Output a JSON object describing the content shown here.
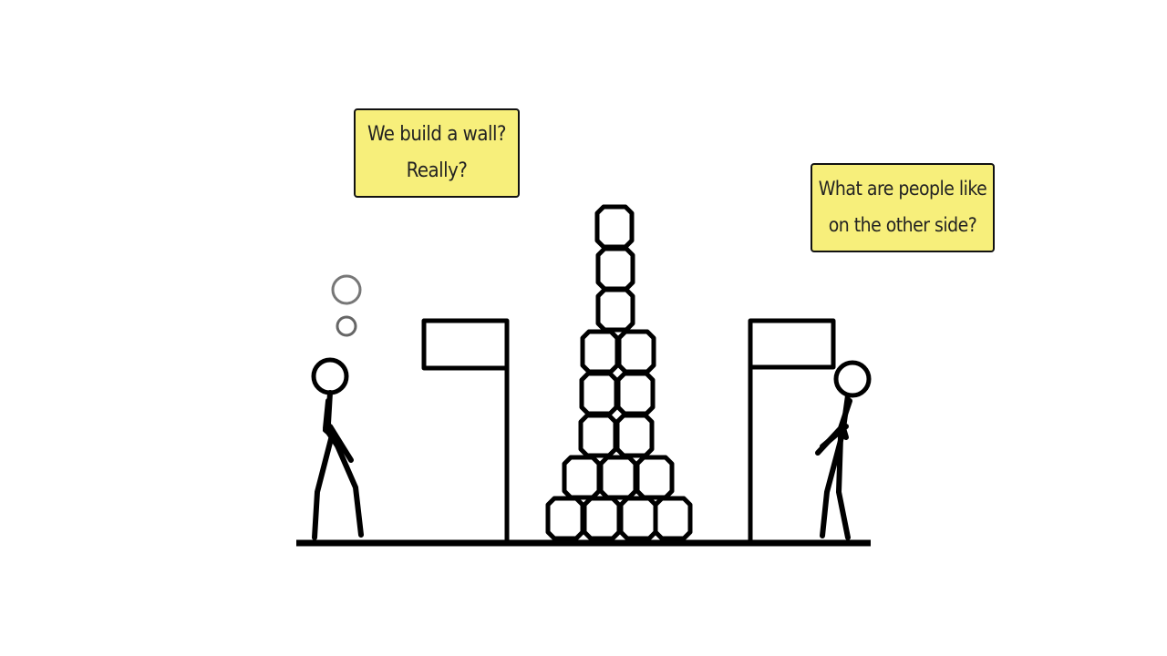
{
  "notes": {
    "left": {
      "line1": "We build a wall?",
      "line2": "Really?"
    },
    "right": {
      "line1": "What are people like",
      "line2": "on the other side?"
    },
    "color": "#f7ef7b"
  },
  "colors": {
    "ink": "#000000",
    "thought_bubble": "#777777",
    "background": "#ffffff"
  }
}
